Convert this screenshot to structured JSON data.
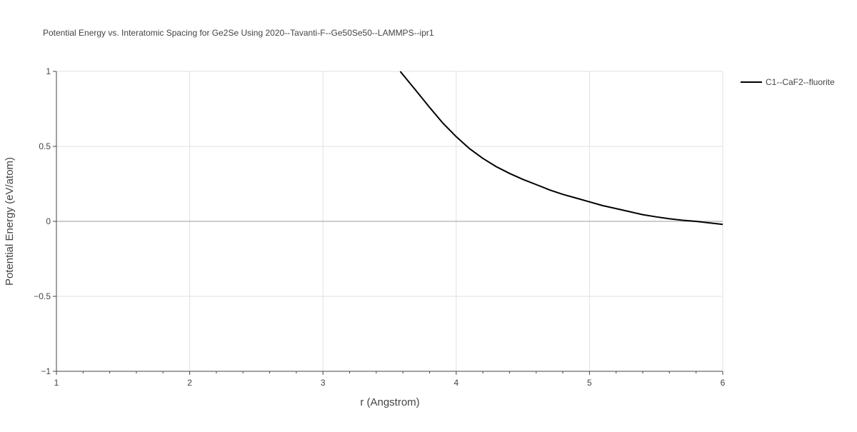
{
  "chart_data": {
    "type": "line",
    "title": "Potential Energy vs. Interatomic Spacing for Ge2Se Using 2020--Tavanti-F--Ge50Se50--LAMMPS--ipr1",
    "xlabel": "r (Angstrom)",
    "ylabel": "Potential Energy (eV/atom)",
    "xlim": [
      1,
      6
    ],
    "ylim": [
      -1,
      1
    ],
    "xticks": [
      1,
      2,
      3,
      4,
      5,
      6
    ],
    "xtick_labels": [
      "1",
      "2",
      "3",
      "4",
      "5",
      "6"
    ],
    "yticks": [
      -1,
      -0.5,
      0,
      0.5,
      1
    ],
    "ytick_labels": [
      "−1",
      "−0.5",
      "0",
      "0.5",
      "1"
    ],
    "grid": true,
    "legend_position": "top-right outside",
    "series": [
      {
        "name": "C1--CaF2--fluorite",
        "color": "#000000",
        "x": [
          3.58,
          3.7,
          3.8,
          3.9,
          4.0,
          4.1,
          4.2,
          4.3,
          4.4,
          4.5,
          4.6,
          4.7,
          4.8,
          4.9,
          5.0,
          5.1,
          5.2,
          5.3,
          5.4,
          5.5,
          5.6,
          5.7,
          5.8,
          5.9,
          6.0
        ],
        "y": [
          1.0,
          0.87,
          0.76,
          0.655,
          0.565,
          0.485,
          0.42,
          0.365,
          0.32,
          0.28,
          0.245,
          0.21,
          0.18,
          0.155,
          0.13,
          0.105,
          0.085,
          0.065,
          0.045,
          0.03,
          0.017,
          0.007,
          0.0,
          -0.01,
          -0.02
        ]
      }
    ]
  }
}
